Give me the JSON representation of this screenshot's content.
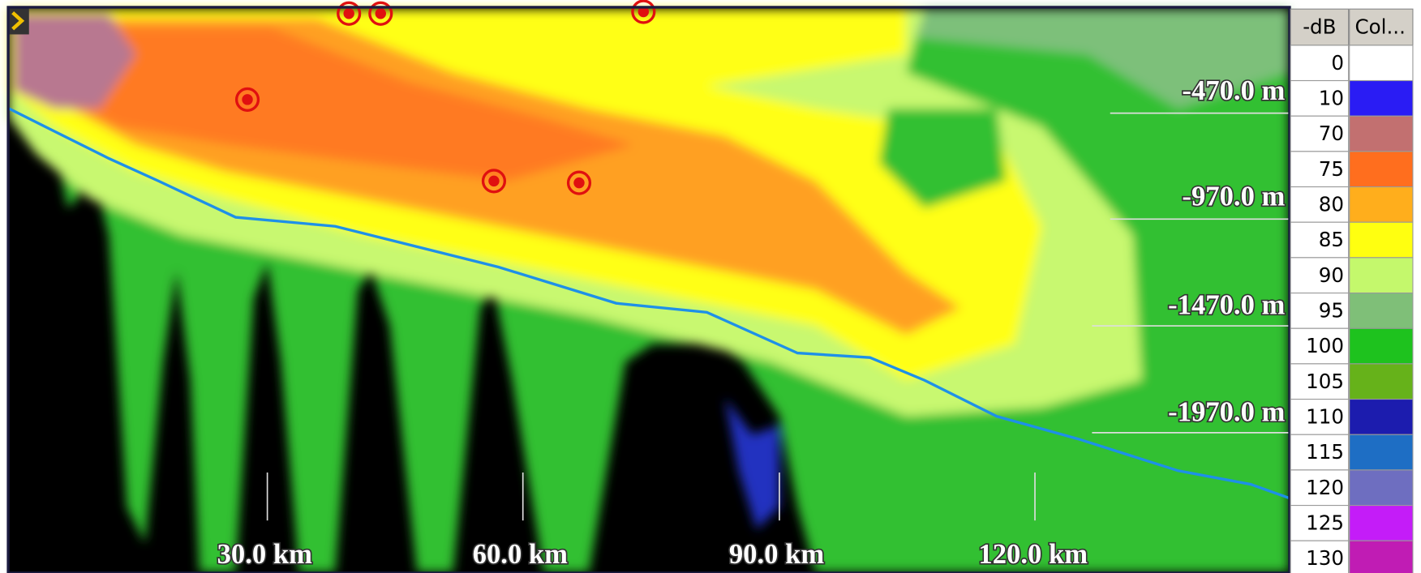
{
  "depth_labels": [
    "-470.0 m",
    "-970.0 m",
    "-1470.0 m",
    "-1970.0 m"
  ],
  "range_labels": [
    "30.0 km",
    "60.0 km",
    "90.0 km",
    "120.0 km"
  ],
  "legend": {
    "headers": [
      "-dB",
      "Col..."
    ],
    "rows": [
      {
        "db": 0,
        "color": "#ffffff"
      },
      {
        "db": 10,
        "color": "#2a1cf4"
      },
      {
        "db": 70,
        "color": "#c27070"
      },
      {
        "db": 75,
        "color": "#ff6e1e"
      },
      {
        "db": 80,
        "color": "#ffae1c"
      },
      {
        "db": 85,
        "color": "#ffff10"
      },
      {
        "db": 90,
        "color": "#c4f86c"
      },
      {
        "db": 95,
        "color": "#7fbf78"
      },
      {
        "db": 100,
        "color": "#1ec21e"
      },
      {
        "db": 105,
        "color": "#66b21a"
      },
      {
        "db": 110,
        "color": "#1c1cae"
      },
      {
        "db": 115,
        "color": "#1e6ec4"
      },
      {
        "db": 120,
        "color": "#6e6ec0"
      },
      {
        "db": 125,
        "color": "#c41cf8"
      },
      {
        "db": 130,
        "color": "#c01cb4"
      }
    ]
  }
}
